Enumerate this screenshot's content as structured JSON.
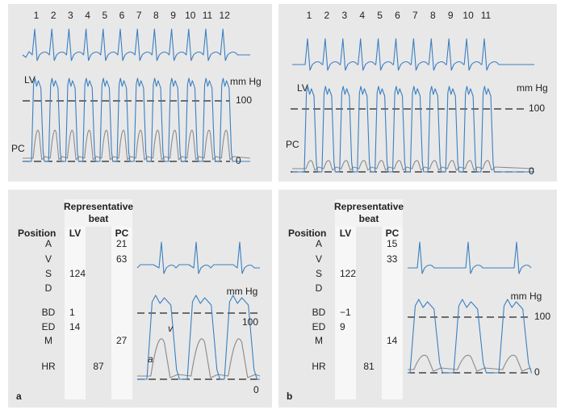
{
  "panels": [
    {
      "letter": "a",
      "top": {
        "beats": [
          1,
          2,
          3,
          4,
          5,
          6,
          7,
          8,
          9,
          10,
          11,
          12
        ],
        "lv_label": "LV",
        "pc_label": "PC",
        "unit": "mm Hg",
        "upper": "100",
        "lower": "0"
      },
      "bottom": {
        "header": "Representative beat",
        "position_heading": "Position",
        "lv_heading": "LV",
        "pc_heading": "PC",
        "rows": [
          {
            "position": "A",
            "pc": "21"
          },
          {
            "position": "V",
            "pc": "63"
          },
          {
            "position": "S",
            "lv": "124"
          },
          {
            "position": "D"
          },
          {
            "position": "BD",
            "lv": "1"
          },
          {
            "position": "ED",
            "lv": "14"
          },
          {
            "position": "M",
            "pc": "27"
          },
          {
            "position": "HR",
            "hr": "87"
          }
        ],
        "unit": "mm Hg",
        "upper": "100",
        "lower": "0",
        "wave_labels": [
          "v",
          "a"
        ]
      }
    },
    {
      "letter": "b",
      "top": {
        "beats": [
          1,
          2,
          3,
          4,
          5,
          6,
          7,
          8,
          9,
          10,
          11
        ],
        "lv_label": "LV",
        "pc_label": "PC",
        "unit": "mm Hg",
        "upper": "100",
        "lower": "0"
      },
      "bottom": {
        "header": "Representative beat",
        "position_heading": "Position",
        "lv_heading": "LV",
        "pc_heading": "PC",
        "rows": [
          {
            "position": "A",
            "pc": "15"
          },
          {
            "position": "V",
            "pc": "33"
          },
          {
            "position": "S",
            "lv": "122"
          },
          {
            "position": "D"
          },
          {
            "position": "BD",
            "lv": "−1"
          },
          {
            "position": "ED",
            "lv": "9"
          },
          {
            "position": "M",
            "pc": "14"
          },
          {
            "position": "HR",
            "hr": "81"
          }
        ],
        "unit": "mm Hg",
        "upper": "100",
        "lower": "0"
      }
    }
  ]
}
